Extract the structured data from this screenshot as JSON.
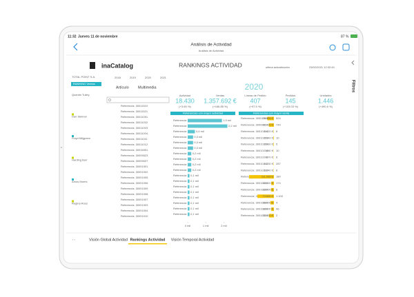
{
  "status": {
    "time": "11:32",
    "date": "Jueves 11 de noviembre",
    "battery": "87 %"
  },
  "header": {
    "title": "Análisis de Actividad",
    "subtitle": "Análisis de Actividad"
  },
  "dashboard": {
    "logo": "inaCatalog",
    "title": "RANKINGS ACTIVIDAD",
    "update_label": "ultima actualización",
    "update_value": "23/02/2021 12:32:44"
  },
  "sidebar": {
    "company": "TOTAL POINT S.A.",
    "ranking": "RANKING Ventas",
    "people": [
      "Quentin Tulley",
      "Dan Skinner",
      "Floyd Miljgreen",
      "Harding Burr",
      "Amos Morris",
      "Regina Ross"
    ]
  },
  "years": [
    "2018",
    "2019",
    "2020",
    "2021"
  ],
  "tabs_top": [
    "Artículo",
    "Multimedia"
  ],
  "kpi_year": "2020",
  "kpis": [
    {
      "label": "Actividad",
      "value": "18.430",
      "change": "(+3.65 %)"
    },
    {
      "label": "Ventas",
      "value": "1.357.692 €",
      "change": "(+166.85 %)"
    },
    {
      "label": "Líneas de Pedido",
      "value": "407",
      "change": "(+97.5 %)"
    },
    {
      "label": "Pedidos",
      "value": "145",
      "change": "(+103.03 %)"
    },
    {
      "label": "Unidades",
      "value": "1.446",
      "change": "(+490.6 %)"
    }
  ],
  "references": [
    "Referencia: 30011510",
    "Referencia: 30011521",
    "Referencia: 30011051",
    "Referencia: 30011002",
    "Referencia: 30011003",
    "Referencia: 30011004",
    "Referencia: 30011011",
    "Referencia: 30011012",
    "Referencia: 30016051",
    "Referencia: 30009023",
    "Referencia: 30009037",
    "Referencia: 30001001",
    "Referencia: 30001002",
    "Referencia: 30001005",
    "Referencia: 30001006",
    "Referencia: 30001009",
    "Referencia: 30001008",
    "Referencia: 30001007",
    "Referencia: 30001003",
    "Referencia: 30001004",
    "Referencia: 30001010"
  ],
  "activity": {
    "title": "Referencias con mayor actividad",
    "xlim": [
      0,
      2.6
    ],
    "xticks": [
      {
        "value": 0,
        "label": "0 mil"
      },
      {
        "value": 1,
        "label": "1 mil"
      },
      {
        "value": 2,
        "label": "2 mil"
      }
    ],
    "rows": [
      {
        "label": "Referencia",
        "value": 1.9,
        "value_label": "1,9 mil"
      },
      {
        "label": "Referencia",
        "value": 2.2,
        "value_label": "2,2 mil"
      },
      {
        "label": "Referencia",
        "value": 0.4,
        "value_label": "0,4 mil"
      },
      {
        "label": "Referencia",
        "value": 0.3,
        "value_label": "0,3 mil"
      },
      {
        "label": "Referencia",
        "value": 0.3,
        "value_label": "0,3 mil"
      },
      {
        "label": "Referencia",
        "value": 0.3,
        "value_label": "0,3 mil"
      },
      {
        "label": "Referencia",
        "value": 0.2,
        "value_label": "0,2 mil"
      },
      {
        "label": "Referencia",
        "value": 0.2,
        "value_label": "0,2 mil"
      },
      {
        "label": "Referencia",
        "value": 0.2,
        "value_label": "0,2 mil"
      },
      {
        "label": "Referencia",
        "value": 0.2,
        "value_label": "0,2 mil"
      },
      {
        "label": "Referencia",
        "value": 0.1,
        "value_label": "0,1 mil"
      },
      {
        "label": "Referencia",
        "value": 0.1,
        "value_label": "0,1 mil"
      },
      {
        "label": "Referencia",
        "value": 0.1,
        "value_label": "0,1 mil"
      },
      {
        "label": "Referencia",
        "value": 0.1,
        "value_label": "0,1 mil"
      },
      {
        "label": "Referencia",
        "value": 0.1,
        "value_label": "0,1 mil"
      },
      {
        "label": "Referencia",
        "value": 0.1,
        "value_label": "0,1 mil"
      },
      {
        "label": "Referencia",
        "value": 0.1,
        "value_label": "0,1 mil"
      },
      {
        "label": "Referencia",
        "value": 0.1,
        "value_label": "0,1 mil"
      }
    ]
  },
  "sales": {
    "title": "Referencias con mayor venta",
    "rows": [
      {
        "ref": "Referencia: 30001001",
        "amount": 29856,
        "amount_label": "29.856 €",
        "units": "524"
      },
      {
        "ref": "Referencia: 30000010",
        "amount": 22720,
        "amount_label": "22.720 €",
        "units": "744"
      },
      {
        "ref": "Referencia: 30010200",
        "amount": 1420,
        "amount_label": "1.420 €",
        "units": "8"
      },
      {
        "ref": "Referencia: 30010200",
        "amount": 2140,
        "amount_label": "2.140 €",
        "units": "10"
      },
      {
        "ref": "Referencia: 30010200",
        "amount": 2060,
        "amount_label": "2.060 €",
        "units": "5"
      },
      {
        "ref": "Referencia: 30010200",
        "amount": 880,
        "amount_label": "880 €",
        "units": "10"
      },
      {
        "ref": "Referencia: 30010200",
        "amount": 870,
        "amount_label": "870 €",
        "units": "6"
      },
      {
        "ref": "Referencia: 30010200",
        "amount": 1230,
        "amount_label": "1.230 €",
        "units": "287"
      },
      {
        "ref": "Referencia: 30010200",
        "amount": 1240,
        "amount_label": "1.240 €",
        "units": "6"
      },
      {
        "ref": "Referencia: 30010300",
        "amount": 111080,
        "amount_label": "111.080 €",
        "units": "180"
      },
      {
        "ref": "Referencia: 30010300",
        "amount": 12000,
        "amount_label": "12.000 €",
        "units": "174"
      },
      {
        "ref": "Referencia: 30010300",
        "amount": 13000,
        "amount_label": "13.000 €",
        "units": "8"
      },
      {
        "ref": "Referencia: 30010300",
        "amount": 73890,
        "amount_label": "73.890 €",
        "units": "1.100"
      },
      {
        "ref": "Referencia: 30010300",
        "amount": 16000,
        "amount_label": "16.000 €",
        "units": "4"
      },
      {
        "ref": "Referencia: 30010300",
        "amount": 12000,
        "amount_label": "12.000 €",
        "units": "96"
      },
      {
        "ref": "Referencia: 30010300",
        "amount": 22300,
        "amount_label": "22.300 €",
        "units": "2"
      }
    ]
  },
  "bottom_tabs": [
    "Visión Global Actividad",
    "Rankings Actividad",
    "Visión Temporal Actividad"
  ],
  "filters": "Filtros"
}
